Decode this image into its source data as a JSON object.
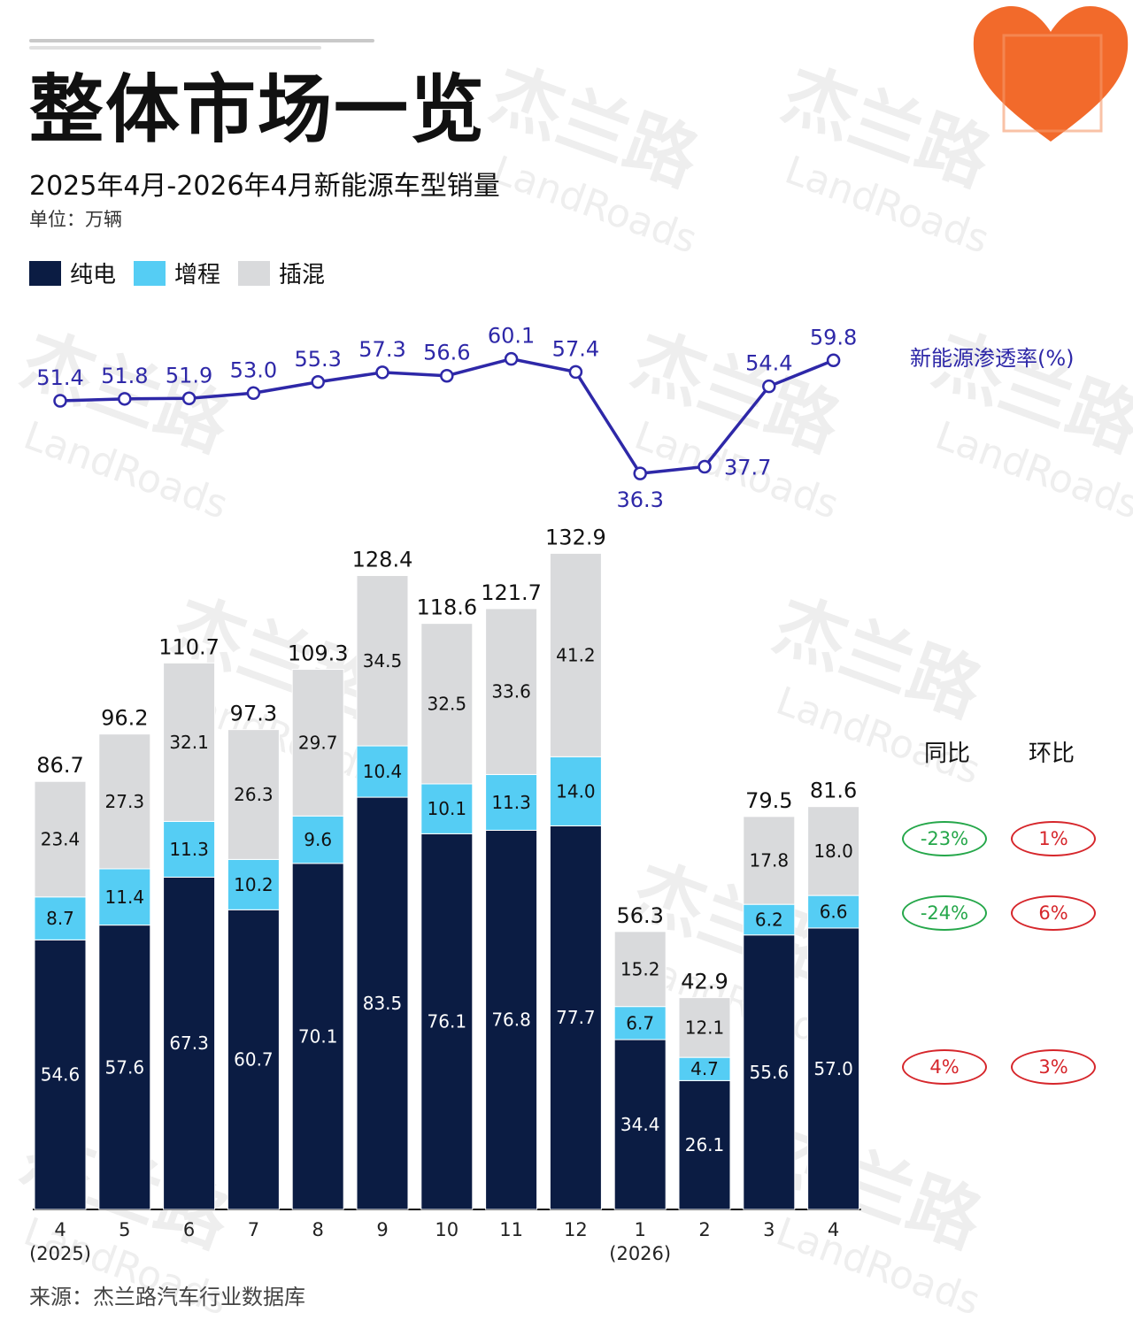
{
  "title": "整体市场一览",
  "subtitle": "2025年4月-2026年4月新能源车型销量",
  "unit": "单位：万辆",
  "source": "来源：杰兰路汽车行业数据库",
  "watermark": "杰兰路 LandRoads",
  "colors": {
    "bev": "#0b1c43",
    "erev": "#55cdf4",
    "phev": "#d9dadc",
    "line": "#2e28a8",
    "up": "#d6262b",
    "down": "#25a74a"
  },
  "legend": [
    {
      "key": "bev",
      "label": "纯电"
    },
    {
      "key": "erev",
      "label": "增程"
    },
    {
      "key": "phev",
      "label": "插混"
    }
  ],
  "comparison": {
    "headers": [
      "同比",
      "环比"
    ],
    "rows": [
      {
        "series": "插混",
        "yoy": "-23%",
        "mom": "1%",
        "yoy_dir": "down",
        "mom_dir": "up"
      },
      {
        "series": "增程",
        "yoy": "-24%",
        "mom": "6%",
        "yoy_dir": "down",
        "mom_dir": "up"
      },
      {
        "series": "纯电",
        "yoy": "4%",
        "mom": "3%",
        "yoy_dir": "up",
        "mom_dir": "up"
      }
    ]
  },
  "chart_data": {
    "type": "bar",
    "stacked": true,
    "categories": [
      "4",
      "5",
      "6",
      "7",
      "8",
      "9",
      "10",
      "11",
      "12",
      "1",
      "2",
      "3",
      "4"
    ],
    "year_labels": {
      "0": "(2025)",
      "9": "(2026)"
    },
    "series": [
      {
        "name": "纯电",
        "values": [
          54.6,
          57.6,
          67.3,
          60.7,
          70.1,
          83.5,
          76.1,
          76.8,
          77.7,
          34.4,
          26.1,
          55.6,
          57.0
        ]
      },
      {
        "name": "增程",
        "values": [
          8.7,
          11.4,
          11.3,
          10.2,
          9.6,
          10.4,
          10.1,
          11.3,
          14.0,
          6.7,
          4.7,
          6.2,
          6.6
        ]
      },
      {
        "name": "插混",
        "values": [
          23.4,
          27.3,
          32.1,
          26.3,
          29.7,
          34.5,
          32.5,
          33.6,
          41.2,
          15.2,
          12.1,
          17.8,
          18.0
        ]
      }
    ],
    "totals": [
      86.7,
      96.2,
      110.7,
      97.3,
      109.3,
      128.4,
      118.6,
      121.7,
      132.9,
      56.3,
      42.9,
      79.5,
      81.6
    ],
    "line": {
      "name": "新能源渗透率(%)",
      "values": [
        51.4,
        51.8,
        51.9,
        53.0,
        55.3,
        57.3,
        56.6,
        60.1,
        57.4,
        36.3,
        37.7,
        54.4,
        59.8
      ]
    }
  }
}
